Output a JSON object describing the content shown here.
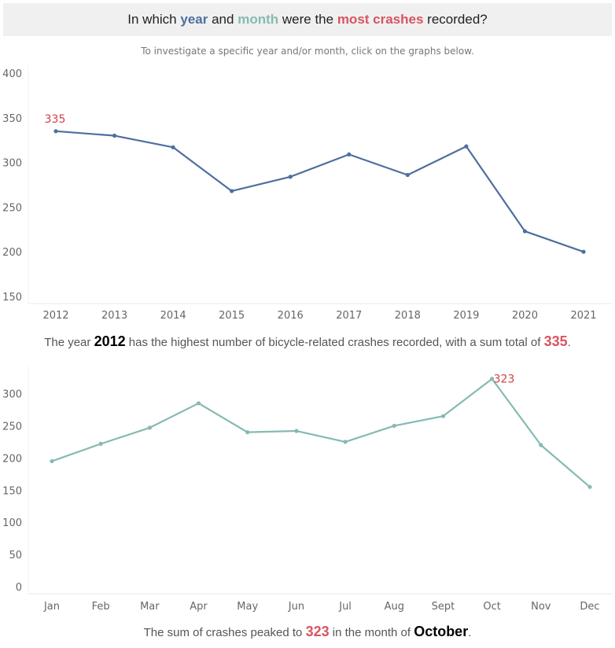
{
  "header": {
    "q_start": "In which",
    "q_year": "year",
    "q_and": "and",
    "q_month": "month",
    "q_were": "were the",
    "q_most": "most crashes",
    "q_end": "recorded?",
    "year_color": "#4e6f9e",
    "month_color": "#86bab3",
    "most_color": "#d9545e"
  },
  "subtitle": "To investigate a specific year and/or month, click on the graphs below.",
  "year_caption": {
    "pre": "The year",
    "year": "2012",
    "mid": "has the highest number of bicycle-related crashes recorded, with a sum total of",
    "total": "335",
    "end": "."
  },
  "month_caption": {
    "pre": "The sum of crashes peaked to",
    "total": "323",
    "mid": "in the month of",
    "month": "October",
    "end": "."
  },
  "chart_data": [
    {
      "type": "line",
      "categories": [
        "2012",
        "2013",
        "2014",
        "2015",
        "2016",
        "2017",
        "2018",
        "2019",
        "2020",
        "2021"
      ],
      "values": [
        335,
        330,
        317,
        268,
        284,
        309,
        286,
        318,
        223,
        200
      ],
      "ylim": [
        150,
        400
      ],
      "yticks": [
        150,
        200,
        250,
        300,
        350,
        400
      ],
      "color": "#4e6f9e",
      "annotation": {
        "index": 0,
        "text": "335",
        "color": "#d1404a"
      },
      "grid": false
    },
    {
      "type": "line",
      "categories": [
        "Jan",
        "Feb",
        "Mar",
        "Apr",
        "May",
        "Jun",
        "Jul",
        "Aug",
        "Sept",
        "Oct",
        "Nov",
        "Dec"
      ],
      "values": [
        195,
        222,
        247,
        285,
        240,
        242,
        225,
        250,
        265,
        323,
        220,
        155
      ],
      "ylim": [
        0,
        330
      ],
      "yticks": [
        0,
        50,
        100,
        150,
        200,
        250,
        300
      ],
      "color": "#86bab3",
      "annotation": {
        "index": 9,
        "text": "323",
        "color": "#d1404a"
      },
      "grid": false
    }
  ]
}
